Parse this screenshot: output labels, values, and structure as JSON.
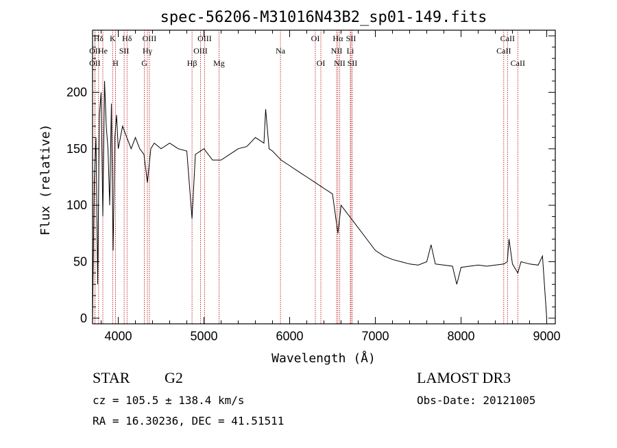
{
  "chart_data": {
    "type": "line",
    "title": "spec-56206-M31016N43B2_sp01-149.fits",
    "xlabel": "Wavelength (Å)",
    "ylabel": "Flux (relative)",
    "xlim": [
      3700,
      9100
    ],
    "ylim": [
      -5,
      255
    ],
    "xticks": [
      4000,
      5000,
      6000,
      7000,
      8000,
      9000
    ],
    "yticks": [
      0,
      50,
      100,
      150,
      200
    ],
    "grid": false,
    "spectrum": {
      "name": "flux",
      "x": [
        3700,
        3720,
        3740,
        3760,
        3780,
        3800,
        3820,
        3840,
        3860,
        3880,
        3900,
        3920,
        3940,
        3960,
        3980,
        4000,
        4050,
        4100,
        4150,
        4200,
        4250,
        4300,
        4340,
        4380,
        4420,
        4500,
        4600,
        4700,
        4800,
        4861,
        4900,
        5000,
        5100,
        5200,
        5300,
        5400,
        5500,
        5600,
        5700,
        5720,
        5760,
        5800,
        5900,
        6000,
        6100,
        6200,
        6300,
        6400,
        6500,
        6563,
        6600,
        6700,
        6800,
        6900,
        7000,
        7100,
        7200,
        7300,
        7400,
        7500,
        7600,
        7650,
        7700,
        7800,
        7900,
        7950,
        8000,
        8100,
        8200,
        8300,
        8400,
        8500,
        8540,
        8560,
        8600,
        8662,
        8700,
        8800,
        8900,
        8950,
        9000
      ],
      "y": [
        0,
        120,
        160,
        30,
        180,
        200,
        90,
        210,
        170,
        150,
        100,
        190,
        60,
        160,
        180,
        150,
        170,
        160,
        150,
        160,
        150,
        145,
        120,
        150,
        155,
        150,
        155,
        150,
        148,
        88,
        145,
        150,
        140,
        140,
        145,
        150,
        152,
        160,
        155,
        185,
        150,
        148,
        140,
        135,
        130,
        125,
        120,
        115,
        110,
        75,
        100,
        90,
        80,
        70,
        60,
        55,
        52,
        50,
        48,
        47,
        50,
        65,
        48,
        47,
        46,
        30,
        45,
        46,
        47,
        46,
        47,
        48,
        50,
        70,
        48,
        40,
        50,
        48,
        47,
        55,
        0
      ]
    },
    "lines": [
      {
        "label": "Hδ",
        "wavelength": 3770,
        "row": 0
      },
      {
        "label": "OII",
        "wavelength": 3727,
        "row": 1
      },
      {
        "label": "He",
        "wavelength": 3820,
        "row": 1
      },
      {
        "label": "K",
        "wavelength": 3934,
        "row": 0
      },
      {
        "label": "H",
        "wavelength": 3969,
        "row": 2
      },
      {
        "label": "SII",
        "wavelength": 4069,
        "row": 1
      },
      {
        "label": "Hδ",
        "wavelength": 4102,
        "row": 0
      },
      {
        "label": "OII",
        "wavelength": 3727,
        "row": 2
      },
      {
        "label": "OIII",
        "wavelength": 4363,
        "row": 0
      },
      {
        "label": "Hγ",
        "wavelength": 4340,
        "row": 1
      },
      {
        "label": "G",
        "wavelength": 4305,
        "row": 2
      },
      {
        "label": "Hβ",
        "wavelength": 4861,
        "row": 2
      },
      {
        "label": "OIII",
        "wavelength": 5007,
        "row": 0
      },
      {
        "label": "OIII",
        "wavelength": 4959,
        "row": 1
      },
      {
        "label": "Mg",
        "wavelength": 5175,
        "row": 2
      },
      {
        "label": "Na",
        "wavelength": 5893,
        "row": 1
      },
      {
        "label": "OI",
        "wavelength": 6300,
        "row": 0
      },
      {
        "label": "OI",
        "wavelength": 6364,
        "row": 2
      },
      {
        "label": "Hα",
        "wavelength": 6563,
        "row": 0
      },
      {
        "label": "NII",
        "wavelength": 6548,
        "row": 1
      },
      {
        "label": "NII",
        "wavelength": 6583,
        "row": 2
      },
      {
        "label": "SII",
        "wavelength": 6716,
        "row": 0
      },
      {
        "label": "Li",
        "wavelength": 6708,
        "row": 1
      },
      {
        "label": "SII",
        "wavelength": 6731,
        "row": 2
      },
      {
        "label": "CaII",
        "wavelength": 8542,
        "row": 0
      },
      {
        "label": "CaII",
        "wavelength": 8498,
        "row": 1
      },
      {
        "label": "CaII",
        "wavelength": 8662,
        "row": 2
      }
    ]
  },
  "info": {
    "object_type": "STAR",
    "object_class": "G2",
    "survey": "LAMOST DR3",
    "cz_line": "cz = 105.5 ± 138.4 km/s",
    "obs_date_line": "Obs-Date: 20121005",
    "radec_line": "RA =  16.30236, DEC =  41.51511"
  },
  "colors": {
    "spectrum": "#000000",
    "line_markers": "#b00000",
    "axes": "#000000"
  }
}
